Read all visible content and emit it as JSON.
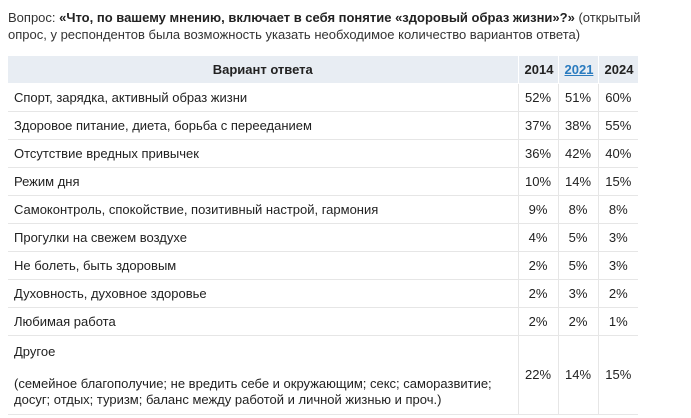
{
  "question": {
    "prefix": "Вопрос: ",
    "text": "«Что, по вашему мнению, включает в себя понятие «здоровый образ жизни»?»",
    "note": " (открытый опрос, у респондентов была возможность указать необходимое количество вариантов ответа)"
  },
  "table": {
    "header_option": "Вариант ответа",
    "years": [
      "2014",
      "2021",
      "2024"
    ],
    "rows": [
      {
        "option": "Спорт, зарядка, активный образ жизни",
        "values": [
          "52%",
          "51%",
          "60%"
        ]
      },
      {
        "option": "Здоровое питание, диета, борьба с перееданием",
        "values": [
          "37%",
          "38%",
          "55%"
        ]
      },
      {
        "option": "Отсутствие вредных привычек",
        "values": [
          "36%",
          "42%",
          "40%"
        ]
      },
      {
        "option": "Режим дня",
        "values": [
          "10%",
          "14%",
          "15%"
        ]
      },
      {
        "option": "Самоконтроль, спокойствие, позитивный настрой, гармония",
        "values": [
          "9%",
          "8%",
          "8%"
        ]
      },
      {
        "option": "Прогулки на свежем воздухе",
        "values": [
          "4%",
          "5%",
          "3%"
        ]
      },
      {
        "option": "Не болеть, быть здоровым",
        "values": [
          "2%",
          "5%",
          "3%"
        ]
      },
      {
        "option": "Духовность, духовное здоровье",
        "values": [
          "2%",
          "3%",
          "2%"
        ]
      },
      {
        "option": "Любимая работа",
        "values": [
          "2%",
          "2%",
          "1%"
        ]
      }
    ],
    "other": {
      "title": "Другое",
      "detail": "(семейное благополучие; не вредить себе и окружающим; секс; саморазвитие; досуг; отдых; туризм; баланс между работой и личной жизнью и проч.)",
      "values": [
        "22%",
        "14%",
        "15%"
      ]
    }
  }
}
